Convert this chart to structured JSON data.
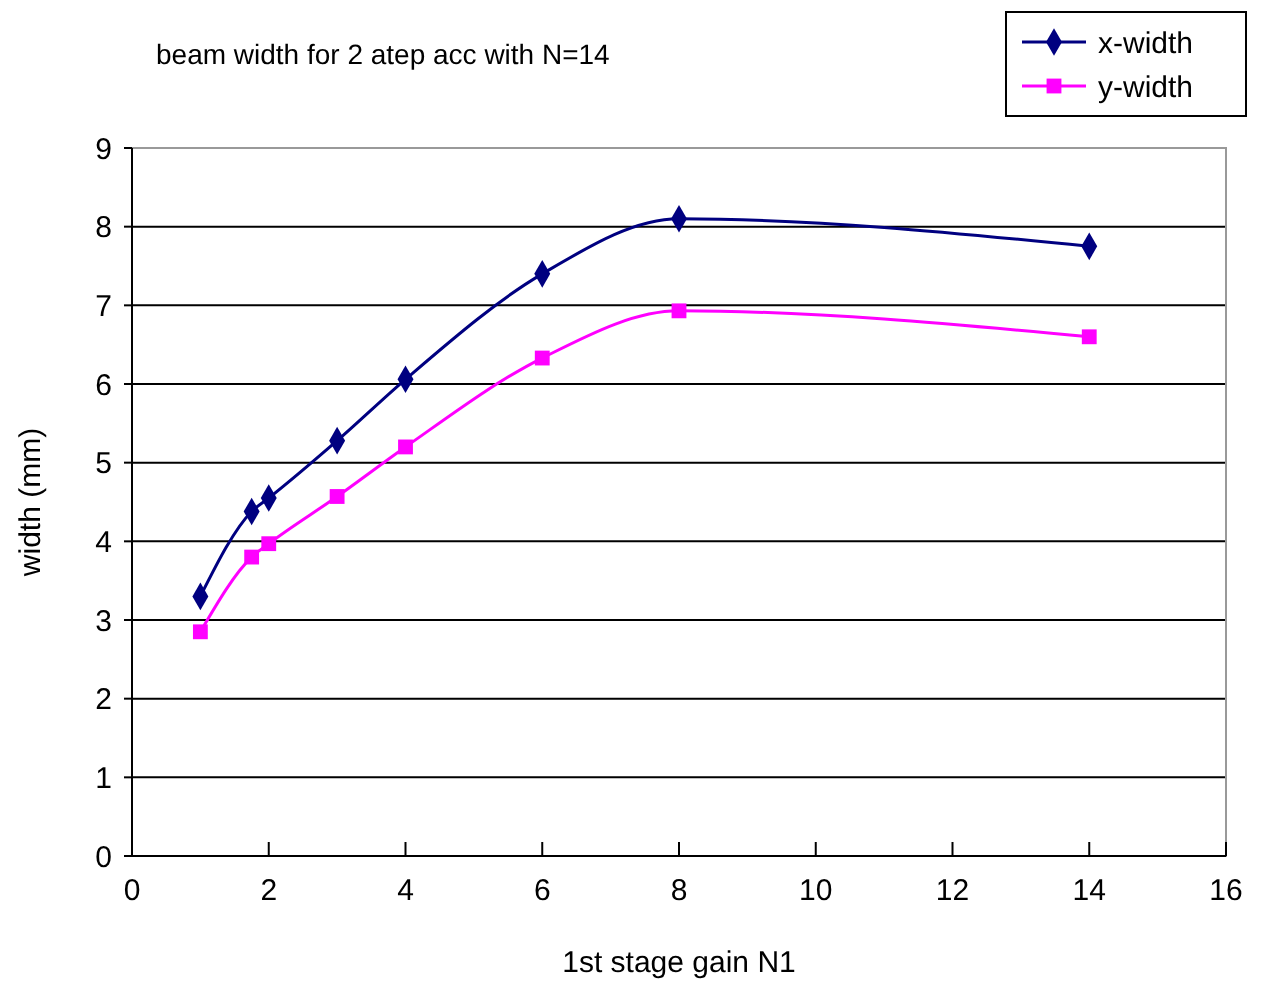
{
  "chart_data": {
    "type": "line",
    "title": "beam width for 2 atep acc with N=14",
    "xlabel": "1st stage gain N1",
    "ylabel": "width (mm)",
    "x": [
      1,
      1.75,
      2,
      3,
      4,
      6,
      8,
      14
    ],
    "series": [
      {
        "name": "x-width",
        "color": "#000080",
        "marker": "diamond",
        "values": [
          3.3,
          4.38,
          4.55,
          5.28,
          6.06,
          7.4,
          8.1,
          7.75
        ]
      },
      {
        "name": "y-width",
        "color": "#ff00ff",
        "marker": "square",
        "values": [
          2.85,
          3.8,
          3.97,
          4.57,
          5.2,
          6.33,
          6.93,
          6.6
        ]
      }
    ],
    "xlim": [
      0,
      16
    ],
    "xticks": [
      0,
      2,
      4,
      6,
      8,
      10,
      12,
      14,
      16
    ],
    "ylim": [
      0,
      9
    ],
    "yticks": [
      0,
      1,
      2,
      3,
      4,
      5,
      6,
      7,
      8,
      9
    ],
    "grid": "y",
    "legend": "top right"
  }
}
